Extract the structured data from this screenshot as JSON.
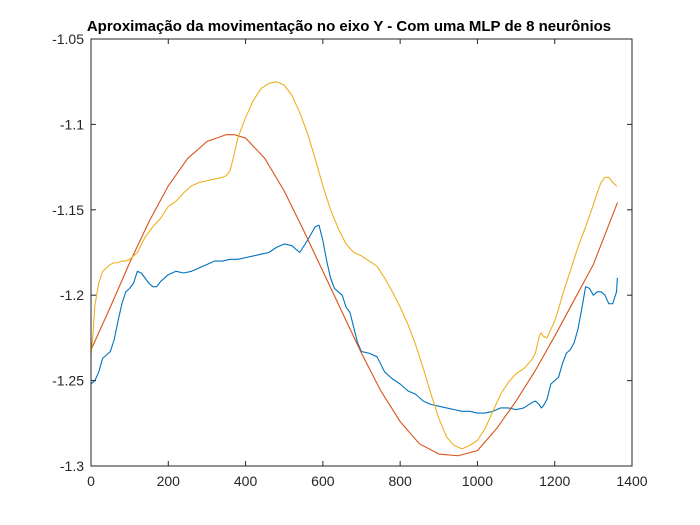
{
  "chart_data": {
    "type": "line",
    "title": "Aproximação da movimentação no eixo Y - Com uma MLP de 8 neurônios",
    "xlabel": "",
    "ylabel": "",
    "xlim": [
      0,
      1400
    ],
    "ylim": [
      -1.3,
      -1.05
    ],
    "grid": false,
    "xticks": [
      0,
      200,
      400,
      600,
      800,
      1000,
      1200,
      1400
    ],
    "xtick_labels": [
      "0",
      "200",
      "400",
      "600",
      "800",
      "1000",
      "1200",
      "1400"
    ],
    "yticks": [
      -1.05,
      -1.1,
      -1.15,
      -1.2,
      -1.25,
      -1.3
    ],
    "ytick_labels": [
      "-1.05",
      "-1.1",
      "-1.15",
      "-1.2",
      "-1.25",
      "-1.3"
    ],
    "series": [
      {
        "name": "series-1",
        "color": "#0072BD",
        "x": [
          0,
          10,
          20,
          30,
          40,
          50,
          60,
          70,
          80,
          90,
          100,
          110,
          120,
          130,
          140,
          150,
          160,
          170,
          180,
          200,
          220,
          240,
          260,
          280,
          300,
          320,
          340,
          360,
          380,
          400,
          420,
          440,
          460,
          480,
          500,
          520,
          540,
          560,
          580,
          590,
          600,
          610,
          620,
          630,
          640,
          650,
          660,
          670,
          680,
          690,
          700,
          720,
          740,
          760,
          780,
          800,
          820,
          840,
          860,
          880,
          900,
          920,
          940,
          960,
          980,
          1000,
          1020,
          1040,
          1060,
          1080,
          1100,
          1120,
          1140,
          1150,
          1160,
          1165,
          1170,
          1180,
          1190,
          1200,
          1210,
          1220,
          1230,
          1240,
          1250,
          1260,
          1270,
          1280,
          1290,
          1300,
          1310,
          1320,
          1330,
          1340,
          1350,
          1360,
          1362
        ],
        "values": [
          -1.252,
          -1.25,
          -1.245,
          -1.237,
          -1.235,
          -1.233,
          -1.226,
          -1.215,
          -1.205,
          -1.198,
          -1.196,
          -1.193,
          -1.186,
          -1.187,
          -1.19,
          -1.193,
          -1.195,
          -1.195,
          -1.192,
          -1.188,
          -1.186,
          -1.187,
          -1.186,
          -1.184,
          -1.182,
          -1.18,
          -1.18,
          -1.179,
          -1.179,
          -1.178,
          -1.177,
          -1.176,
          -1.175,
          -1.172,
          -1.17,
          -1.171,
          -1.175,
          -1.168,
          -1.16,
          -1.159,
          -1.168,
          -1.18,
          -1.19,
          -1.196,
          -1.198,
          -1.2,
          -1.207,
          -1.21,
          -1.219,
          -1.228,
          -1.233,
          -1.234,
          -1.236,
          -1.245,
          -1.249,
          -1.252,
          -1.256,
          -1.258,
          -1.262,
          -1.264,
          -1.265,
          -1.266,
          -1.267,
          -1.268,
          -1.268,
          -1.269,
          -1.269,
          -1.268,
          -1.266,
          -1.266,
          -1.267,
          -1.266,
          -1.263,
          -1.262,
          -1.264,
          -1.266,
          -1.265,
          -1.261,
          -1.252,
          -1.25,
          -1.248,
          -1.24,
          -1.234,
          -1.232,
          -1.228,
          -1.22,
          -1.208,
          -1.195,
          -1.196,
          -1.2,
          -1.198,
          -1.198,
          -1.2,
          -1.205,
          -1.205,
          -1.198,
          -1.19
        ]
      },
      {
        "name": "series-2",
        "color": "#D95319",
        "x": [
          0,
          50,
          100,
          150,
          200,
          250,
          300,
          350,
          370,
          400,
          450,
          500,
          550,
          600,
          650,
          700,
          750,
          800,
          850,
          900,
          950,
          1000,
          1050,
          1100,
          1150,
          1200,
          1250,
          1300,
          1362
        ],
        "values": [
          -1.232,
          -1.207,
          -1.181,
          -1.157,
          -1.136,
          -1.12,
          -1.11,
          -1.106,
          -1.106,
          -1.108,
          -1.12,
          -1.139,
          -1.162,
          -1.186,
          -1.21,
          -1.234,
          -1.256,
          -1.274,
          -1.287,
          -1.293,
          -1.294,
          -1.291,
          -1.278,
          -1.262,
          -1.244,
          -1.224,
          -1.203,
          -1.182,
          -1.146
        ]
      },
      {
        "name": "series-3",
        "color": "#EDB120",
        "x": [
          0,
          5,
          10,
          20,
          30,
          40,
          50,
          60,
          70,
          80,
          90,
          100,
          110,
          120,
          140,
          160,
          180,
          200,
          220,
          240,
          260,
          280,
          300,
          320,
          340,
          350,
          360,
          370,
          380,
          400,
          420,
          440,
          460,
          480,
          500,
          520,
          540,
          560,
          580,
          600,
          620,
          640,
          660,
          680,
          700,
          720,
          740,
          760,
          780,
          800,
          820,
          840,
          860,
          880,
          900,
          920,
          940,
          960,
          980,
          1000,
          1020,
          1040,
          1060,
          1080,
          1100,
          1120,
          1140,
          1150,
          1160,
          1165,
          1170,
          1180,
          1190,
          1200,
          1210,
          1220,
          1240,
          1260,
          1280,
          1300,
          1310,
          1320,
          1330,
          1340,
          1350,
          1360
        ],
        "values": [
          -1.235,
          -1.223,
          -1.206,
          -1.193,
          -1.186,
          -1.184,
          -1.182,
          -1.181,
          -1.181,
          -1.18,
          -1.18,
          -1.179,
          -1.177,
          -1.175,
          -1.166,
          -1.16,
          -1.155,
          -1.148,
          -1.145,
          -1.14,
          -1.136,
          -1.134,
          -1.133,
          -1.132,
          -1.131,
          -1.13,
          -1.127,
          -1.118,
          -1.108,
          -1.096,
          -1.086,
          -1.079,
          -1.076,
          -1.075,
          -1.077,
          -1.083,
          -1.093,
          -1.105,
          -1.12,
          -1.136,
          -1.15,
          -1.161,
          -1.17,
          -1.175,
          -1.177,
          -1.18,
          -1.183,
          -1.19,
          -1.198,
          -1.207,
          -1.217,
          -1.229,
          -1.243,
          -1.258,
          -1.272,
          -1.283,
          -1.288,
          -1.29,
          -1.288,
          -1.285,
          -1.278,
          -1.268,
          -1.258,
          -1.251,
          -1.246,
          -1.243,
          -1.238,
          -1.234,
          -1.224,
          -1.222,
          -1.224,
          -1.225,
          -1.22,
          -1.215,
          -1.208,
          -1.2,
          -1.186,
          -1.172,
          -1.16,
          -1.147,
          -1.14,
          -1.134,
          -1.131,
          -1.131,
          -1.134,
          -1.136
        ]
      }
    ]
  }
}
